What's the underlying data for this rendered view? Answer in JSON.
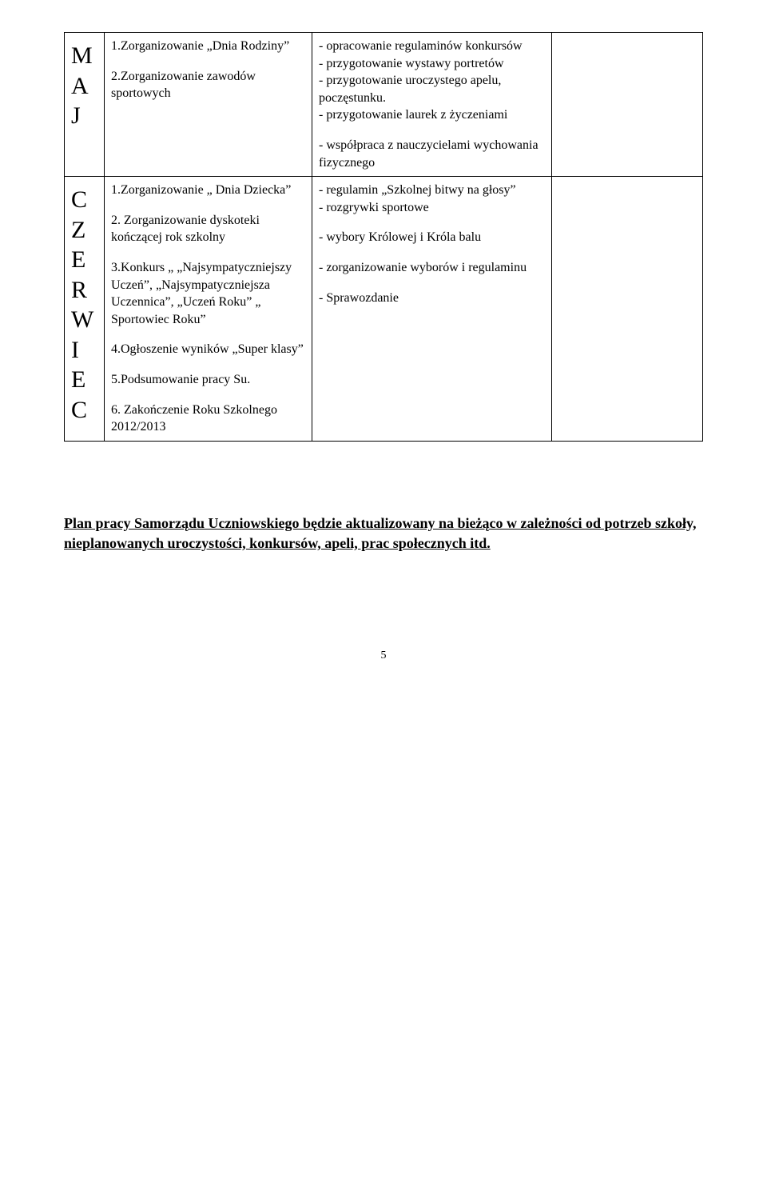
{
  "rows": [
    {
      "monthLetters": [
        "M",
        "A",
        "J"
      ],
      "col2": [
        {
          "text": "1.Zorganizowanie „Dnia Rodziny”"
        },
        {
          "text": "2.Zorganizowanie zawodów sportowych"
        }
      ],
      "col3": [
        {
          "text": "- opracowanie regulaminów konkursów\n- przygotowanie wystawy portretów\n- przygotowanie uroczystego apelu, poczęstunku.\n- przygotowanie laurek z życzeniami"
        },
        {
          "text": "- współpraca z nauczycielami wychowania fizycznego"
        }
      ]
    },
    {
      "monthLetters": [
        "C",
        "Z",
        "E",
        "R",
        "W",
        "I",
        "E",
        "C"
      ],
      "col2": [
        {
          "text": "1.Zorganizowanie „ Dnia Dziecka”"
        },
        {
          "text": "2. Zorganizowanie dyskoteki kończącej rok szkolny"
        },
        {
          "text": "3.Konkurs „ „Najsympatyczniejszy Uczeń”, „Najsympatyczniejsza Uczennica”, „Uczeń Roku” „ Sportowiec Roku”"
        },
        {
          "text": "4.Ogłoszenie wyników „Super klasy”"
        },
        {
          "text": "5.Podsumowanie pracy Su."
        },
        {
          "text": "6. Zakończenie Roku Szkolnego 2012/2013"
        }
      ],
      "col3": [
        {
          "text": "- regulamin „Szkolnej bitwy na głosy”\n- rozgrywki sportowe"
        },
        {
          "text": "- wybory Królowej i Króla balu"
        },
        {
          "text": "- zorganizowanie wyborów i regulaminu"
        },
        {
          "text": ""
        },
        {
          "text": "- Sprawozdanie"
        },
        {
          "text": ""
        }
      ]
    }
  ],
  "planText": "Plan pracy Samorządu Uczniowskiego będzie aktualizowany na bieżąco w zależności od potrzeb szkoły, nieplanowanych uroczystości, konkursów, apeli, prac społecznych itd.",
  "pageNumber": "5",
  "colors": {
    "text": "#000000",
    "background": "#ffffff",
    "border": "#000000"
  },
  "fonts": {
    "body_family": "Times New Roman",
    "body_size_pt": 12,
    "month_letter_size_pt": 22,
    "plan_size_pt": 13,
    "plan_weight": "bold",
    "plan_underline": true
  }
}
